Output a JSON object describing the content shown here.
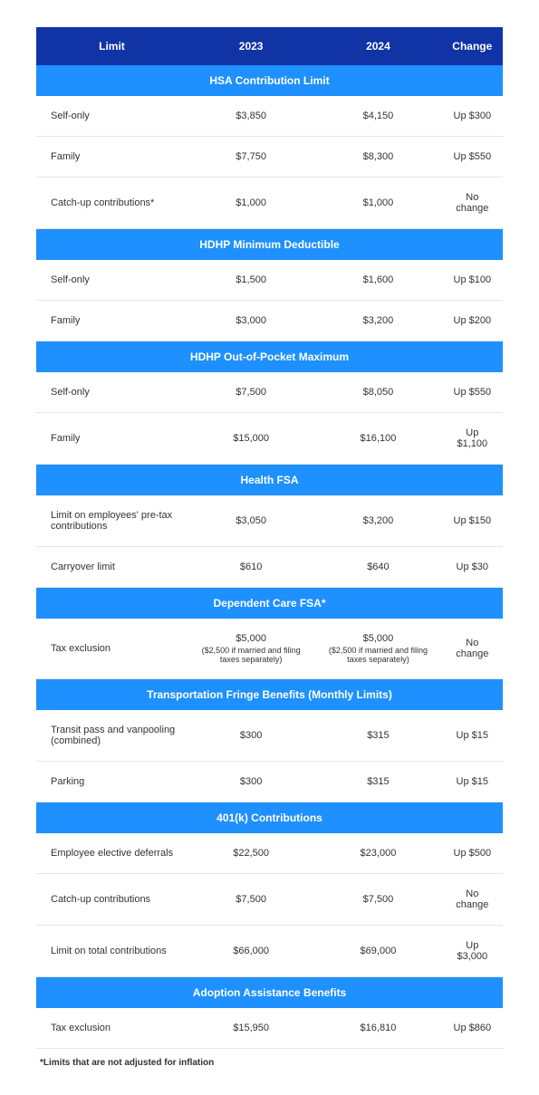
{
  "columns": [
    "Limit",
    "2023",
    "2024",
    "Change"
  ],
  "colors": {
    "header_bg": "#1033a6",
    "section_bg": "#1e90ff",
    "header_text": "#ffffff",
    "cell_text": "#333333",
    "border": "#e5e5e5"
  },
  "sections": [
    {
      "title": "HSA Contribution Limit",
      "rows": [
        {
          "label": "Self-only",
          "y2023": "$3,850",
          "y2024": "$4,150",
          "change": "Up $300"
        },
        {
          "label": "Family",
          "y2023": "$7,750",
          "y2024": "$8,300",
          "change": "Up $550"
        },
        {
          "label": "Catch-up contributions*",
          "y2023": "$1,000",
          "y2024": "$1,000",
          "change": "No change"
        }
      ]
    },
    {
      "title": "HDHP Minimum Deductible",
      "rows": [
        {
          "label": "Self-only",
          "y2023": "$1,500",
          "y2024": "$1,600",
          "change": "Up $100"
        },
        {
          "label": "Family",
          "y2023": "$3,000",
          "y2024": "$3,200",
          "change": "Up $200"
        }
      ]
    },
    {
      "title": "HDHP Out-of-Pocket Maximum",
      "rows": [
        {
          "label": "Self-only",
          "y2023": "$7,500",
          "y2024": "$8,050",
          "change": "Up $550"
        },
        {
          "label": "Family",
          "y2023": "$15,000",
          "y2024": "$16,100",
          "change": "Up $1,100"
        }
      ]
    },
    {
      "title": "Health FSA",
      "rows": [
        {
          "label": "Limit on employees' pre-tax contributions",
          "y2023": "$3,050",
          "y2024": "$3,200",
          "change": "Up $150"
        },
        {
          "label": "Carryover limit",
          "y2023": "$610",
          "y2024": "$640",
          "change": "Up $30"
        }
      ]
    },
    {
      "title": "Dependent Care FSA*",
      "rows": [
        {
          "label": "Tax exclusion",
          "y2023": "$5,000",
          "y2023_sub": "($2,500 if married and filing taxes separately)",
          "y2024": "$5,000",
          "y2024_sub": "($2,500 if married and filing taxes separately)",
          "change": "No change"
        }
      ]
    },
    {
      "title": "Transportation Fringe Benefits (Monthly Limits)",
      "rows": [
        {
          "label": "Transit pass and vanpooling (combined)",
          "y2023": "$300",
          "y2024": "$315",
          "change": "Up $15"
        },
        {
          "label": "Parking",
          "y2023": "$300",
          "y2024": "$315",
          "change": "Up $15"
        }
      ]
    },
    {
      "title": "401(k) Contributions",
      "rows": [
        {
          "label": "Employee elective deferrals",
          "y2023": "$22,500",
          "y2024": "$23,000",
          "change": "Up $500"
        },
        {
          "label": "Catch-up contributions",
          "y2023": "$7,500",
          "y2024": "$7,500",
          "change": "No change"
        },
        {
          "label": "Limit on total contributions",
          "y2023": "$66,000",
          "y2024": "$69,000",
          "change": "Up $3,000"
        }
      ]
    },
    {
      "title": "Adoption Assistance Benefits",
      "rows": [
        {
          "label": "Tax exclusion",
          "y2023": "$15,950",
          "y2024": "$16,810",
          "change": "Up $860"
        }
      ]
    }
  ],
  "footnote": "*Limits that are not adjusted for inflation"
}
